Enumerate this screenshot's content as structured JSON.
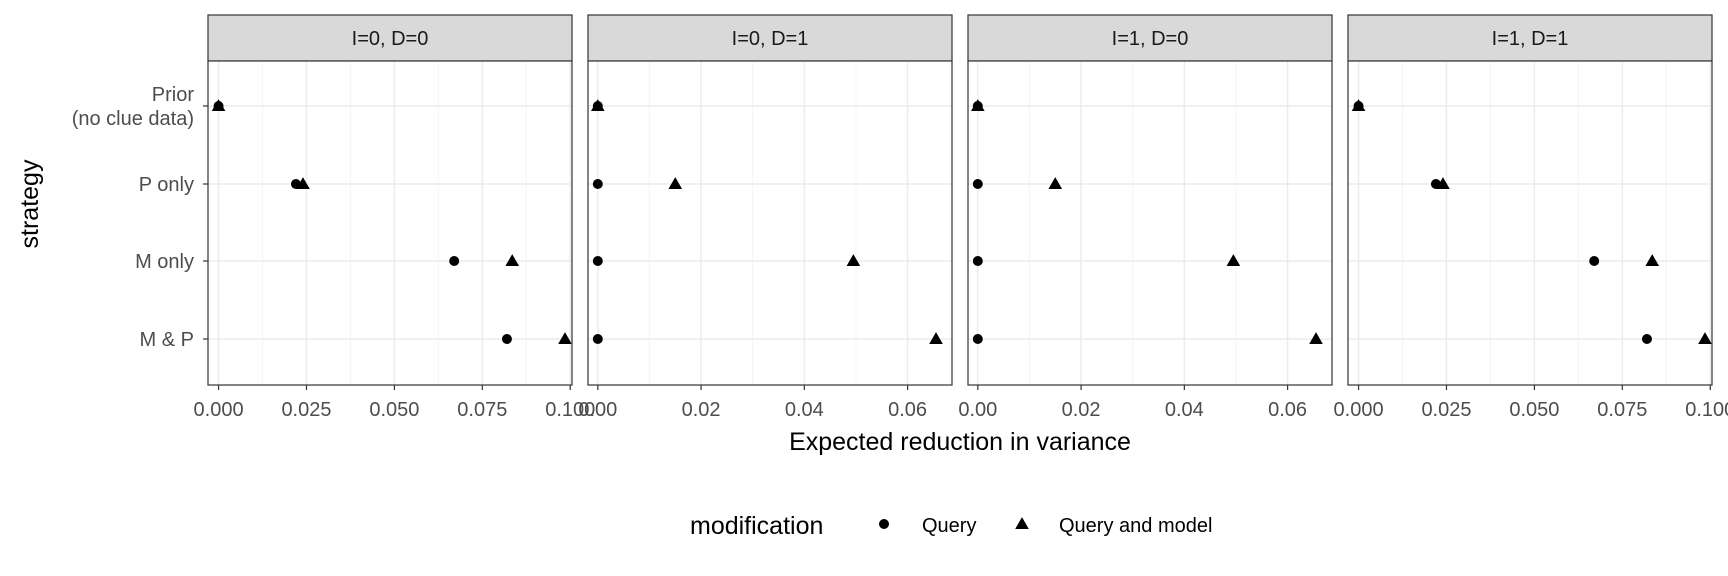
{
  "chart_data": {
    "type": "scatter",
    "facet_by": "I, D",
    "ylabel": "strategy",
    "xlabel": "Expected reduction in variance",
    "categories": [
      "Prior\n(no clue data)",
      "P only",
      "M only",
      "M & P"
    ],
    "legend": {
      "title": "modification",
      "placement": "bottom",
      "entries": [
        {
          "label": "Query",
          "shape": "circle"
        },
        {
          "label": "Query and model",
          "shape": "triangle"
        }
      ]
    },
    "grid": true,
    "colors": {
      "points": "#000000",
      "strip": "#d9d9d9",
      "grid": "#ebebeb",
      "border": "#333333"
    },
    "panels": [
      {
        "label": "I=0, D=0",
        "xlim": [
          -0.003,
          0.1005
        ],
        "xticks": [
          0.0,
          0.025,
          0.05,
          0.075,
          0.1
        ],
        "xtick_labels": [
          "0.000",
          "0.025",
          "0.050",
          "0.075",
          "0.100"
        ],
        "series": [
          {
            "name": "Query",
            "values": [
              0.0,
              0.022,
              0.067,
              0.082
            ]
          },
          {
            "name": "Query and model",
            "values": [
              0.0,
              0.024,
              0.0835,
              0.0985
            ]
          }
        ]
      },
      {
        "label": "I=0, D=1",
        "xlim": [
          -0.0019,
          0.0686
        ],
        "xticks": [
          0.0,
          0.02,
          0.04,
          0.06
        ],
        "xtick_labels": [
          "0.00",
          "0.02",
          "0.04",
          "0.06"
        ],
        "series": [
          {
            "name": "Query",
            "values": [
              0.0,
              0.0,
              0.0,
              0.0
            ]
          },
          {
            "name": "Query and model",
            "values": [
              0.0,
              0.015,
              0.0495,
              0.0655
            ]
          }
        ]
      },
      {
        "label": "I=1, D=0",
        "xlim": [
          -0.0019,
          0.0686
        ],
        "xticks": [
          0.0,
          0.02,
          0.04,
          0.06
        ],
        "xtick_labels": [
          "0.00",
          "0.02",
          "0.04",
          "0.06"
        ],
        "series": [
          {
            "name": "Query",
            "values": [
              0.0,
              0.0,
              0.0,
              0.0
            ]
          },
          {
            "name": "Query and model",
            "values": [
              0.0,
              0.015,
              0.0495,
              0.0655
            ]
          }
        ]
      },
      {
        "label": "I=1, D=1",
        "xlim": [
          -0.003,
          0.1005
        ],
        "xticks": [
          0.0,
          0.025,
          0.05,
          0.075,
          0.1
        ],
        "xtick_labels": [
          "0.000",
          "0.025",
          "0.050",
          "0.075",
          "0.100"
        ],
        "series": [
          {
            "name": "Query",
            "values": [
              0.0,
              0.022,
              0.067,
              0.082
            ]
          },
          {
            "name": "Query and model",
            "values": [
              0.0,
              0.024,
              0.0835,
              0.0985
            ]
          }
        ]
      }
    ]
  }
}
